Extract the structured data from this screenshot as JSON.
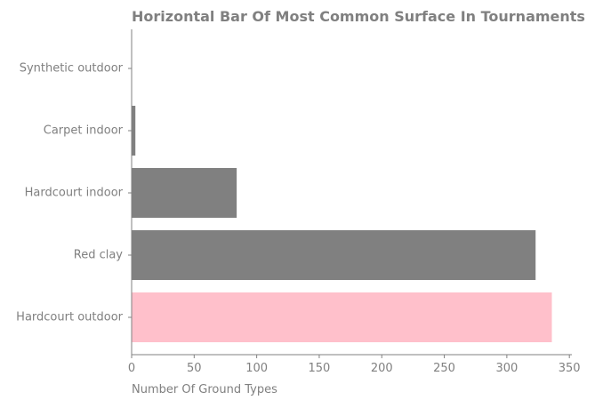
{
  "chart_data": {
    "type": "bar",
    "orientation": "horizontal",
    "title": "Horizontal Bar Of Most Common Surface In Tournaments",
    "xlabel": "Number Of Ground Types",
    "ylabel": "",
    "categories": [
      "Hardcourt outdoor",
      "Red clay",
      "Hardcourt indoor",
      "Carpet indoor",
      "Synthetic outdoor"
    ],
    "values": [
      336,
      323,
      84,
      3,
      0
    ],
    "bar_colors": [
      "#ffc0cb",
      "#808080",
      "#808080",
      "#808080",
      "#808080"
    ],
    "xlim": [
      0,
      352
    ],
    "xticks": [
      0,
      50,
      100,
      150,
      200,
      250,
      300,
      350
    ],
    "grid": false,
    "legend": "none",
    "text_color": "#808080",
    "axis_color": "#808080"
  }
}
